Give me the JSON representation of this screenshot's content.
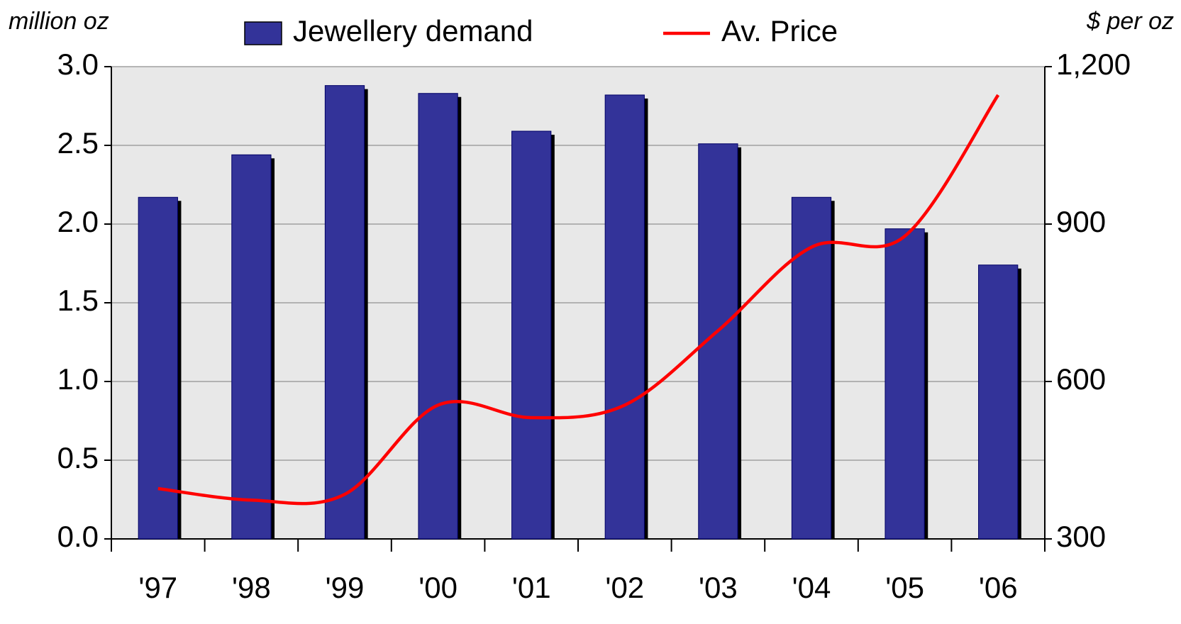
{
  "chart_data": {
    "type": "bar",
    "y_label": "million oz",
    "y2_label": "$ per oz",
    "categories": [
      "'97",
      "'98",
      "'99",
      "'00",
      "'01",
      "'02",
      "'03",
      "'04",
      "'05",
      "'06"
    ],
    "series": [
      {
        "name": "Jewellery demand",
        "type": "bar",
        "color": "#333399",
        "values": [
          2.17,
          2.44,
          2.88,
          2.83,
          2.59,
          2.82,
          2.51,
          2.17,
          1.97,
          1.74
        ]
      },
      {
        "name": "Av. Price",
        "type": "line",
        "axis": "y2",
        "color": "#ff0000",
        "values": [
          396,
          374,
          385,
          555,
          531,
          555,
          697,
          856,
          877,
          1146
        ]
      }
    ],
    "ylim": [
      0,
      3
    ],
    "yticks": [
      {
        "value": 0,
        "label": "0.0"
      },
      0.5,
      {
        "value": 1,
        "label": "1.0"
      },
      1.5,
      {
        "value": 2,
        "label": "2.0"
      },
      2.5,
      {
        "value": 3,
        "label": "3.0"
      }
    ],
    "y2lim": [
      300,
      1200
    ],
    "y2ticks": [
      300,
      600,
      900,
      {
        "value": 1200,
        "label": "1,200"
      }
    ],
    "grid": true,
    "legend": "top"
  }
}
